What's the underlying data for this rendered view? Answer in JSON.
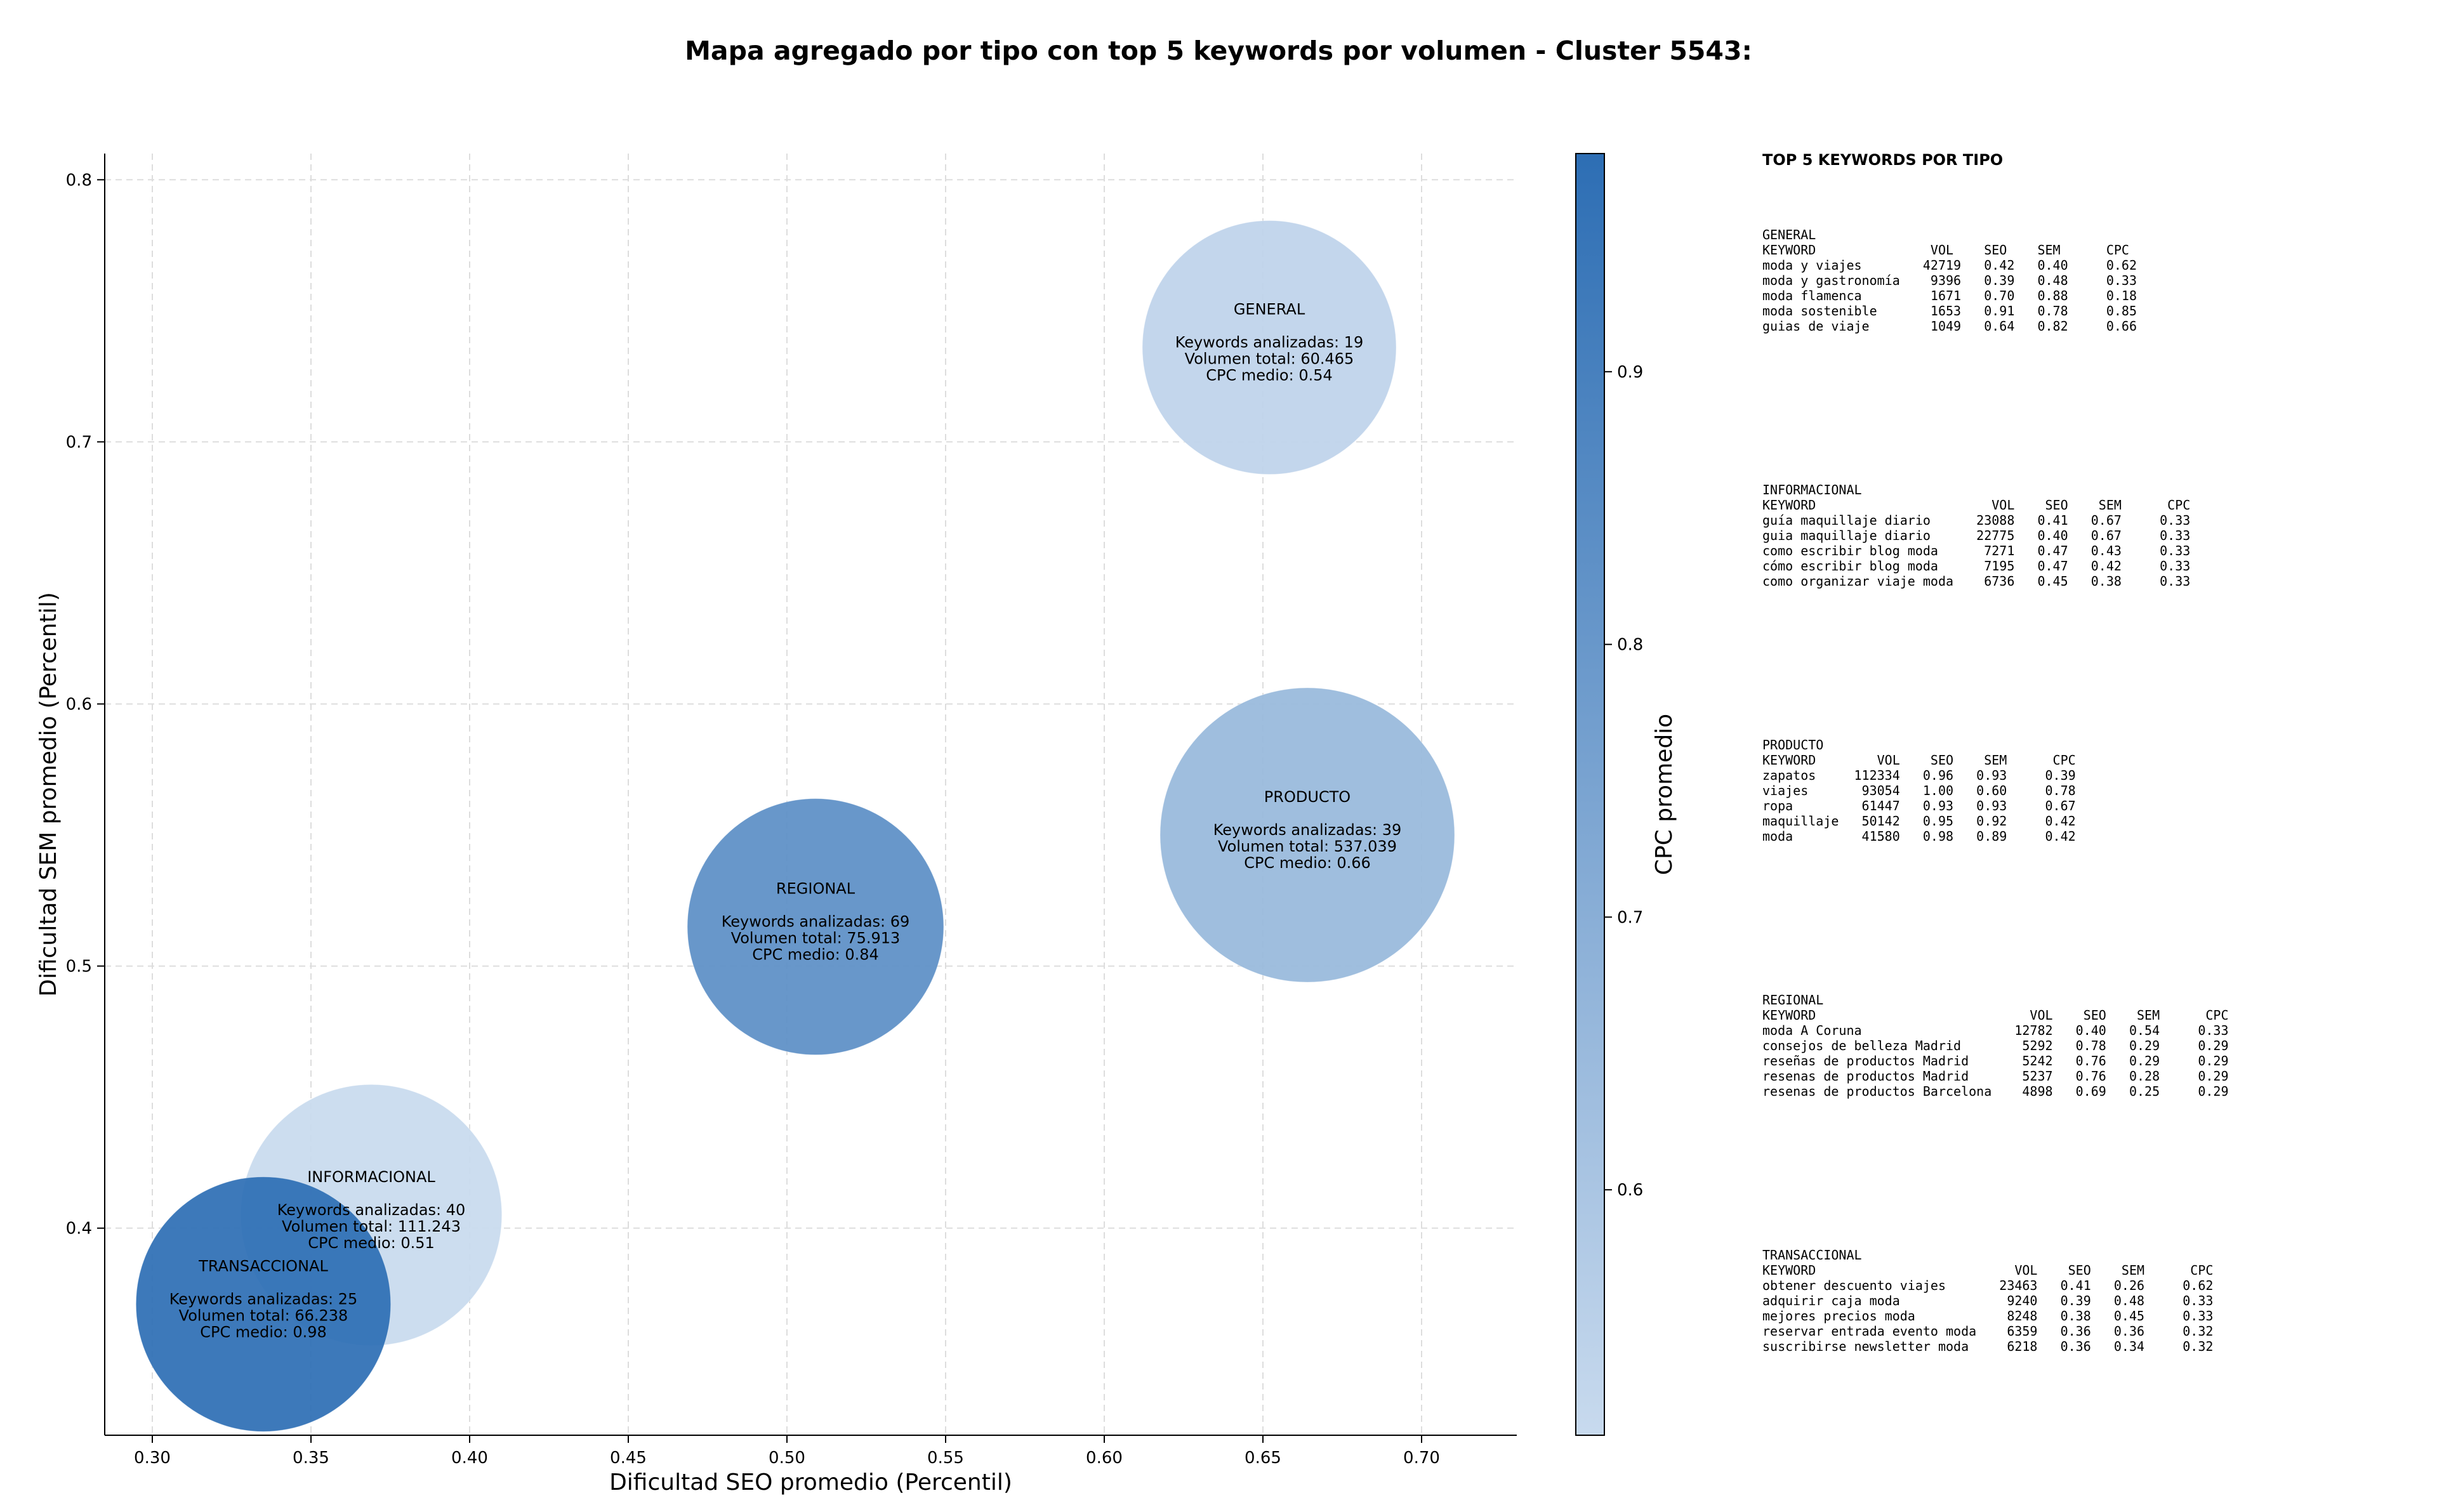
{
  "chart_data": {
    "type": "scatter",
    "title": "Mapa agregado por tipo con top 5 keywords por volumen - Cluster 5543:",
    "xlabel": "Dificultad SEO promedio (Percentil)",
    "ylabel": "Dificultad SEM promedio (Percentil)",
    "xlim": [
      0.285,
      0.73
    ],
    "ylim": [
      0.321,
      0.81
    ],
    "xticks": [
      "0.30",
      "0.35",
      "0.40",
      "0.45",
      "0.50",
      "0.55",
      "0.60",
      "0.65",
      "0.70"
    ],
    "yticks": [
      "0.4",
      "0.5",
      "0.6",
      "0.7",
      "0.8"
    ],
    "grid": true,
    "points": [
      {
        "label": "GENERAL",
        "x": 0.652,
        "y": 0.736,
        "keywords": 19,
        "volume": 60465,
        "cpc": 0.54,
        "lines": [
          "GENERAL",
          "Keywords analizadas: 19",
          "Volumen total: 60.465",
          "CPC medio: 0.54"
        ]
      },
      {
        "label": "INFORMACIONAL",
        "x": 0.369,
        "y": 0.405,
        "keywords": 40,
        "volume": 111243,
        "cpc": 0.51,
        "lines": [
          "INFORMACIONAL",
          "Keywords analizadas: 40",
          "Volumen total: 111.243",
          "CPC medio: 0.51"
        ]
      },
      {
        "label": "PRODUCTO",
        "x": 0.664,
        "y": 0.55,
        "keywords": 39,
        "volume": 537039,
        "cpc": 0.66,
        "lines": [
          "PRODUCTO",
          "Keywords analizadas: 39",
          "Volumen total: 537.039",
          "CPC medio: 0.66"
        ]
      },
      {
        "label": "REGIONAL",
        "x": 0.509,
        "y": 0.515,
        "keywords": 69,
        "volume": 75913,
        "cpc": 0.84,
        "lines": [
          "REGIONAL",
          "Keywords analizadas: 69",
          "Volumen total: 75.913",
          "CPC medio: 0.84"
        ]
      },
      {
        "label": "TRANSACCIONAL",
        "x": 0.335,
        "y": 0.371,
        "keywords": 25,
        "volume": 66238,
        "cpc": 0.98,
        "lines": [
          "TRANSACCIONAL",
          "Keywords analizadas: 25",
          "Volumen total: 66.238",
          "CPC medio: 0.98"
        ]
      }
    ],
    "colorbar": {
      "label": "CPC promedio",
      "range": [
        0.51,
        0.98
      ],
      "ticks": [
        "0.6",
        "0.7",
        "0.8",
        "0.9"
      ],
      "color_low": "#c8daee",
      "color_high": "#2d6eb4"
    }
  },
  "table": {
    "heading": "TOP 5 KEYWORDS POR TIPO",
    "groups": [
      {
        "name": "GENERAL",
        "text": "GENERAL\nKEYWORD               VOL    SEO    SEM      CPC\nmoda y viajes        42719   0.42   0.40     0.62\nmoda y gastronomía    9396   0.39   0.48     0.33\nmoda flamenca         1671   0.70   0.88     0.18\nmoda sostenible       1653   0.91   0.78     0.85\nguias de viaje        1049   0.64   0.82     0.66"
      },
      {
        "name": "INFORMACIONAL",
        "text": "INFORMACIONAL\nKEYWORD                       VOL    SEO    SEM      CPC\nguía maquillaje diario      23088   0.41   0.67     0.33\nguia maquillaje diario      22775   0.40   0.67     0.33\ncomo escribir blog moda      7271   0.47   0.43     0.33\ncómo escribir blog moda      7195   0.47   0.42     0.33\ncomo organizar viaje moda    6736   0.45   0.38     0.33"
      },
      {
        "name": "PRODUCTO",
        "text": "PRODUCTO\nKEYWORD        VOL    SEO    SEM      CPC\nzapatos     112334   0.96   0.93     0.39\nviajes       93054   1.00   0.60     0.78\nropa         61447   0.93   0.93     0.67\nmaquillaje   50142   0.95   0.92     0.42\nmoda         41580   0.98   0.89     0.42"
      },
      {
        "name": "REGIONAL",
        "text": "REGIONAL\nKEYWORD                            VOL    SEO    SEM      CPC\nmoda A Coruna                    12782   0.40   0.54     0.33\nconsejos de belleza Madrid        5292   0.78   0.29     0.29\nreseñas de productos Madrid       5242   0.76   0.29     0.29\nresenas de productos Madrid       5237   0.76   0.28     0.29\nresenas de productos Barcelona    4898   0.69   0.25     0.29"
      },
      {
        "name": "TRANSACCIONAL",
        "text": "TRANSACCIONAL\nKEYWORD                          VOL    SEO    SEM      CPC\nobtener descuento viajes       23463   0.41   0.26     0.62\nadquirir caja moda              9240   0.39   0.48     0.33\nmejores precios moda            8248   0.38   0.45     0.33\nreservar entrada evento moda    6359   0.36   0.36     0.32\nsuscribirse newsletter moda     6218   0.36   0.34     0.32"
      }
    ]
  }
}
